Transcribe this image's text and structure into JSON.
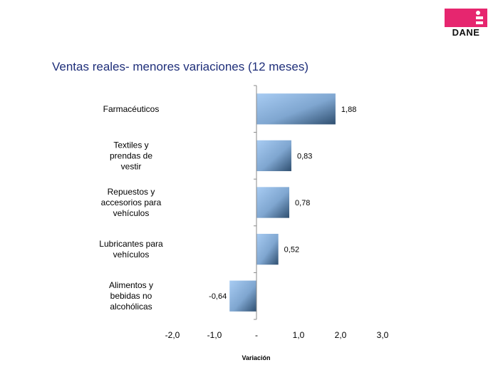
{
  "logo": {
    "text": "DANE",
    "color": "#e6266f"
  },
  "chart_data": {
    "type": "bar",
    "orientation": "horizontal",
    "title": "Ventas reales- menores variaciones (12 meses)",
    "xlabel": "Variación",
    "categories": [
      "Farmacéuticos",
      "Textiles y prendas de vestir",
      "Repuestos y accesorios para vehículos",
      "Lubricantes para vehículos",
      "Alimentos y bebidas no alcohólicas"
    ],
    "category_lines": [
      [
        "Farmacéuticos"
      ],
      [
        "Textiles y",
        "prendas de",
        "vestir"
      ],
      [
        "Repuestos y",
        "accesorios para",
        "vehículos"
      ],
      [
        "Lubricantes para",
        "vehículos"
      ],
      [
        "Alimentos  y",
        "bebidas no",
        "alcohólicas"
      ]
    ],
    "values": [
      1.88,
      0.83,
      0.78,
      0.52,
      -0.64
    ],
    "value_labels": [
      "1,88",
      "0,83",
      "0,78",
      "0,52",
      "-0,64"
    ],
    "xlim": [
      -2.0,
      3.0
    ],
    "ticks": [
      -2.0,
      -1.0,
      0,
      1.0,
      2.0,
      3.0
    ],
    "tick_labels": [
      "-2,0",
      "-1,0",
      "-",
      "1,0",
      "2,0",
      "3,0"
    ],
    "grid": false,
    "legend": "none",
    "bar_color_light": "#a8ccf3",
    "bar_color_dark": "#2f4f70"
  }
}
